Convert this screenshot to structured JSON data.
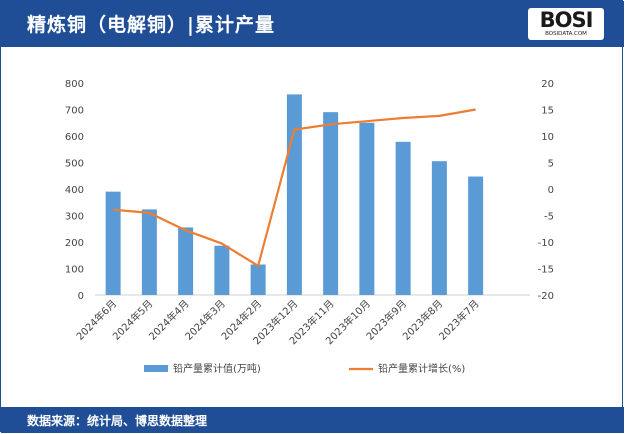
{
  "header": {
    "title": "精炼铜（电解铜）|累计产量",
    "logo_text": "BOSI",
    "logo_sub": "BOSIDATA.COM"
  },
  "footer": {
    "source": "数据来源：统计局、博思数据整理"
  },
  "colors": {
    "frame": "#1f4e96",
    "bar": "#5b9bd5",
    "line": "#ed7d31"
  },
  "chart_data": {
    "type": "bar",
    "categories": [
      "2024年6月",
      "2024年5月",
      "2024年4月",
      "2024年3月",
      "2024年2月",
      "2023年12月",
      "2023年11月",
      "2023年10月",
      "2023年9月",
      "2023年8月",
      "2023年7月"
    ],
    "series": [
      {
        "name": "铅产量累计值(万吨)",
        "type": "bar",
        "axis": "left",
        "values": [
          390,
          323,
          255,
          186,
          115,
          757,
          690,
          650,
          578,
          505,
          447
        ]
      },
      {
        "name": "铅产量累计增长(%)",
        "type": "line",
        "axis": "right",
        "values": [
          -3.9,
          -4.5,
          -7.8,
          -10.3,
          -14.5,
          11.2,
          12.2,
          12.8,
          13.4,
          13.8,
          15.0
        ]
      }
    ],
    "y_left": {
      "ylim": [
        0,
        800
      ],
      "ticks": [
        "0",
        "100",
        "200",
        "300",
        "400",
        "500",
        "600",
        "700",
        "800"
      ]
    },
    "y_right": {
      "ylim": [
        -20,
        20
      ],
      "ticks": [
        "-20",
        "-15",
        "-10",
        "-5",
        "0",
        "5",
        "10",
        "15",
        "20"
      ]
    },
    "legend": "bottom",
    "grid": false
  }
}
